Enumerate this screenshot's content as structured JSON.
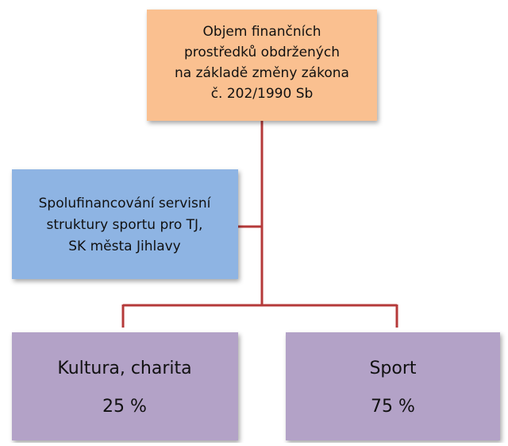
{
  "nodes": [
    {
      "lines": [
        "Objem finančních",
        "prostředků obdržených",
        "na základě změny zákona",
        "č. 202/1990 Sb"
      ]
    },
    {
      "lines": [
        "Spolufinancování servisní",
        "struktury sportu pro TJ,",
        "SK města Jihlavy"
      ]
    },
    {
      "lines": [
        "Kultura, charita",
        "25 %"
      ]
    },
    {
      "lines": [
        "Sport",
        "75 %"
      ]
    }
  ]
}
